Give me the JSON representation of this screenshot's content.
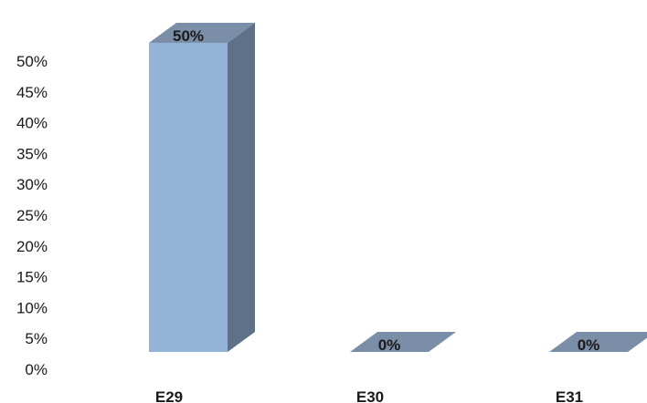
{
  "chart_data": {
    "type": "bar",
    "style": "3d-column",
    "categories": [
      "E29",
      "E30",
      "E31"
    ],
    "series": [
      {
        "values": [
          50,
          0,
          0
        ],
        "data_labels": [
          "50%",
          "0%",
          "0%"
        ]
      }
    ],
    "yticks": [
      "0%",
      "5%",
      "10%",
      "15%",
      "20%",
      "25%",
      "30%",
      "35%",
      "40%",
      "45%",
      "50%"
    ],
    "ylim": [
      0,
      50
    ],
    "grid": false,
    "legend": "none",
    "colors": {
      "front": "#95b3d7",
      "side": "#5f7089",
      "top": "#7b8ea8"
    }
  }
}
